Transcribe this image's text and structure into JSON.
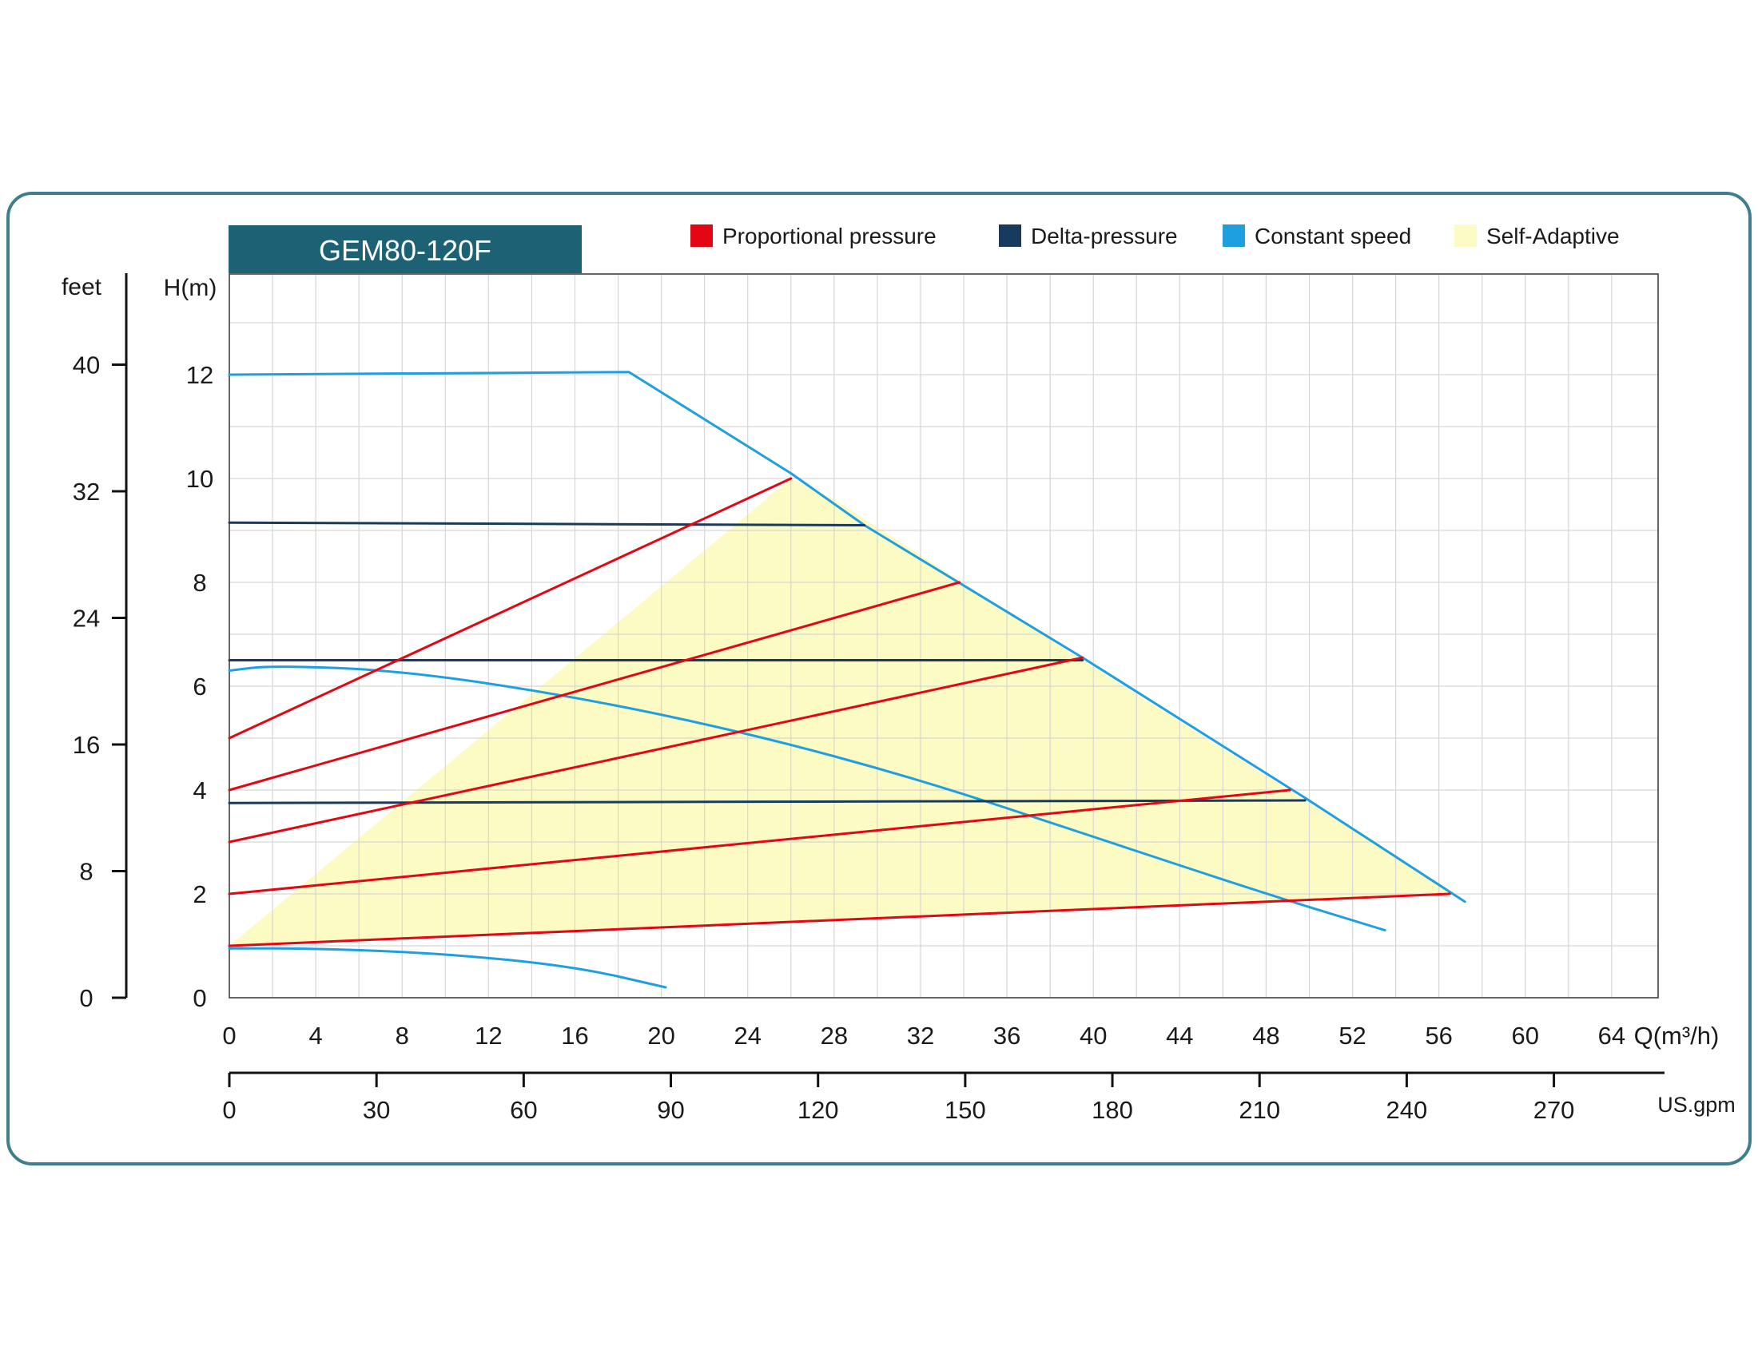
{
  "title": "GEM80-120F",
  "colors": {
    "frame": "#3f7f8d",
    "title_bg": "#1d6274",
    "title_text": "#ffffff",
    "proportional": "#e30613",
    "delta": "#173a5e",
    "constant": "#1e9fe0",
    "adaptive": "#fdfbc4",
    "grid": "#d6d6d6"
  },
  "legend": [
    {
      "label": "Proportional pressure",
      "color": "#e30613"
    },
    {
      "label": "Delta-pressure",
      "color": "#173a5e"
    },
    {
      "label": "Constant speed",
      "color": "#1e9fe0"
    },
    {
      "label": "Self-Adaptive",
      "color": "#fdfbc4"
    }
  ],
  "axes": {
    "feet_label": "feet",
    "feet_ticks": [
      "0",
      "8",
      "16",
      "24",
      "32",
      "40"
    ],
    "h_label": "H(m)",
    "h_ticks": [
      "0",
      "2",
      "4",
      "6",
      "8",
      "10",
      "12"
    ],
    "q_label": "Q(m³/h)",
    "q_ticks": [
      "0",
      "4",
      "8",
      "12",
      "16",
      "20",
      "24",
      "28",
      "32",
      "36",
      "40",
      "44",
      "48",
      "52",
      "56",
      "60",
      "64"
    ],
    "gpm_label": "US.gpm",
    "gpm_ticks": [
      "0",
      "30",
      "60",
      "90",
      "120",
      "150",
      "180",
      "210",
      "240",
      "270"
    ]
  },
  "chart_data": {
    "type": "line",
    "title": "GEM80-120F",
    "xlabel": "Q(m³/h)",
    "ylabel": "H(m)",
    "xlim": [
      0,
      66
    ],
    "ylim": [
      0,
      14
    ],
    "secondary_x": {
      "label": "US.gpm",
      "ticks": [
        0,
        30,
        60,
        90,
        120,
        150,
        180,
        210,
        240,
        270
      ]
    },
    "secondary_y": {
      "label": "feet",
      "ticks": [
        0,
        8,
        16,
        24,
        32,
        40
      ]
    },
    "grid": true,
    "legend_position": "top",
    "self_adaptive_area": [
      [
        0,
        1.0
      ],
      [
        26,
        10.0
      ],
      [
        28,
        9.6
      ],
      [
        39.5,
        6.5
      ],
      [
        49.8,
        3.8
      ],
      [
        57.2,
        1.9
      ],
      [
        56.5,
        2.0
      ],
      [
        0,
        1.0
      ]
    ],
    "series": [
      {
        "name": "Proportional pressure",
        "color": "#e30613",
        "lines": [
          [
            [
              0,
              5.0
            ],
            [
              26,
              10.0
            ]
          ],
          [
            [
              0,
              4.0
            ],
            [
              33.8,
              8.0
            ]
          ],
          [
            [
              0,
              3.0
            ],
            [
              39.5,
              6.55
            ]
          ],
          [
            [
              0,
              2.0
            ],
            [
              49.1,
              4.0
            ]
          ],
          [
            [
              0,
              1.0
            ],
            [
              56.5,
              2.0
            ]
          ]
        ]
      },
      {
        "name": "Delta-pressure",
        "color": "#173a5e",
        "lines": [
          [
            [
              0,
              9.15
            ],
            [
              29.4,
              9.1
            ]
          ],
          [
            [
              0,
              6.5
            ],
            [
              39.5,
              6.5
            ]
          ],
          [
            [
              0,
              3.75
            ],
            [
              49.8,
              3.8
            ]
          ]
        ]
      },
      {
        "name": "Constant speed",
        "color": "#1e9fe0",
        "lines": [
          [
            [
              0,
              12.0
            ],
            [
              18.5,
              12.05
            ],
            [
              26,
              10.1
            ],
            [
              29.4,
              9.1
            ],
            [
              39.5,
              6.55
            ],
            [
              49.8,
              3.85
            ],
            [
              57.2,
              1.85
            ]
          ],
          [
            [
              0,
              6.3
            ],
            [
              2,
              6.4
            ],
            [
              8,
              6.3
            ],
            [
              16,
              5.8
            ],
            [
              24,
              5.1
            ],
            [
              32,
              4.2
            ],
            [
              40,
              3.1
            ],
            [
              48,
              2.0
            ],
            [
              53.5,
              1.3
            ]
          ],
          [
            [
              0,
              0.95
            ],
            [
              4,
              0.95
            ],
            [
              10,
              0.85
            ],
            [
              16,
              0.6
            ],
            [
              20.2,
              0.2
            ]
          ]
        ]
      },
      {
        "name": "Self-Adaptive",
        "color": "#fdfbc4",
        "area": true
      }
    ]
  }
}
